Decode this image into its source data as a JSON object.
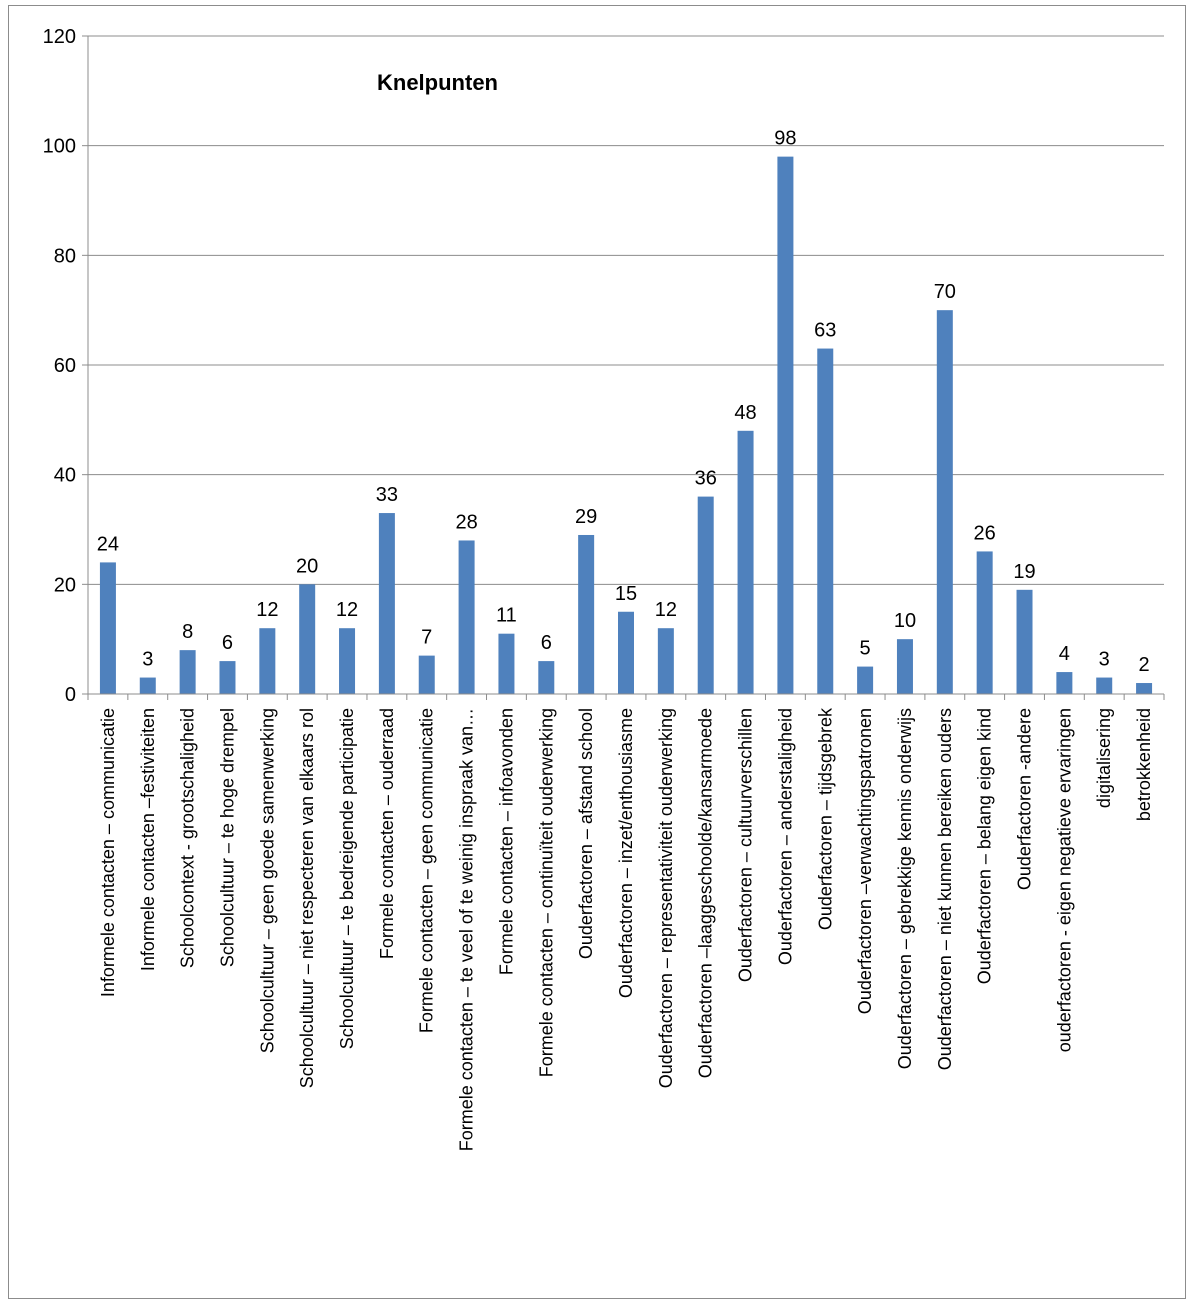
{
  "chart_data": {
    "type": "bar",
    "title": "Knelpunten",
    "xlabel": "",
    "ylabel": "",
    "ylim": [
      0,
      120
    ],
    "yticks": [
      0,
      20,
      40,
      60,
      80,
      100,
      120
    ],
    "grid": true,
    "legend": "none",
    "bar_color": "#4f81bd",
    "categories": [
      "Informele contacten – communicatie",
      "Informele contacten –festiviteiten",
      "Schoolcontext - grootschaligheid",
      "Schoolcultuur – te hoge drempel",
      "Schoolcultuur – geen goede samenwerking",
      "Schoolcultuur – niet respecteren van elkaars rol",
      "Schoolcultuur – te bedreigende  participatie",
      "Formele contacten – ouderraad",
      "Formele contacten – geen communicatie",
      "Formele contacten – te veel of te weinig inspraak van…",
      "Formele contacten – infoavonden",
      "Formele contacten – continuïteit ouderwerking",
      "Ouderfactoren – afstand school",
      "Ouderfactoren – inzet/enthousiasme",
      "Ouderfactoren – representativiteit ouderwerking",
      "Ouderfactoren –laaggeschoolde/kansarmoede",
      "Ouderfactoren – cultuurverschillen",
      "Ouderfactoren – anderstaligheid",
      "Ouderfactoren – tijdsgebrek",
      "Ouderfactoren –verwachtingspatronen",
      "Ouderfactoren – gebrekkige kennis onderwijs",
      "Ouderfactoren – niet kunnen bereiken ouders",
      "Ouderfactoren – belang eigen kind",
      "Ouderfactoren -andere",
      "ouderfactoren - eigen negatieve ervaringen",
      "digitalisering",
      "betrokkenheid"
    ],
    "values": [
      24,
      3,
      8,
      6,
      12,
      20,
      12,
      33,
      7,
      28,
      11,
      6,
      29,
      15,
      12,
      36,
      48,
      98,
      63,
      5,
      10,
      70,
      26,
      19,
      4,
      3,
      2
    ]
  }
}
